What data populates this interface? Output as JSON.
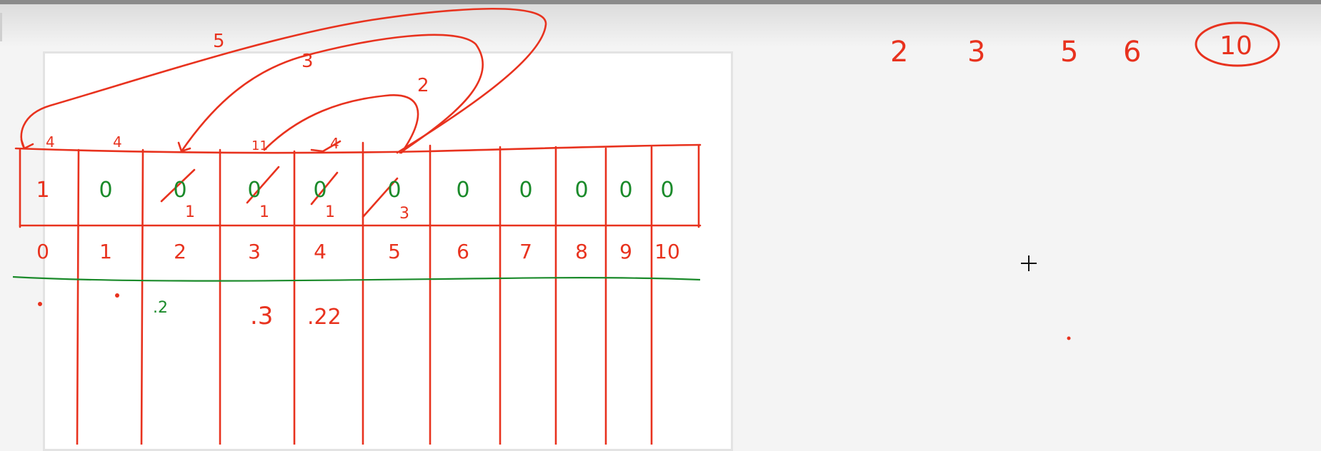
{
  "colors": {
    "ink_red": "#e8321e",
    "ink_green": "#1a8a2a",
    "panel": "#ffffff",
    "background": "#f4f4f4"
  },
  "board": {
    "cells": [
      {
        "value": "1",
        "color": "red",
        "crossed": false
      },
      {
        "value": "0",
        "color": "green",
        "crossed": false
      },
      {
        "value": "0",
        "color": "green",
        "crossed": true,
        "correction": "1"
      },
      {
        "value": "0",
        "color": "green",
        "crossed": true,
        "correction": "1"
      },
      {
        "value": "0",
        "color": "green",
        "crossed": true,
        "correction": "1"
      },
      {
        "value": "0",
        "color": "green",
        "crossed": true,
        "correction": "3"
      },
      {
        "value": "0",
        "color": "green",
        "crossed": false
      },
      {
        "value": "0",
        "color": "green",
        "crossed": false
      },
      {
        "value": "0",
        "color": "green",
        "crossed": false
      },
      {
        "value": "0",
        "color": "green",
        "crossed": false
      },
      {
        "value": "0",
        "color": "green",
        "crossed": false
      }
    ],
    "indices": [
      "0",
      "1",
      "2",
      "3",
      "4",
      "5",
      "6",
      "7",
      "8",
      "9",
      "10"
    ],
    "lower_notes": [
      ".2",
      ".3",
      ".22"
    ],
    "arc_labels": [
      "5",
      "3",
      "2"
    ],
    "tick_marks": [
      "4",
      "4",
      "11",
      "4"
    ]
  },
  "side_notes": {
    "numbers": [
      "2",
      "3",
      "5",
      "6"
    ],
    "circled": "10"
  }
}
